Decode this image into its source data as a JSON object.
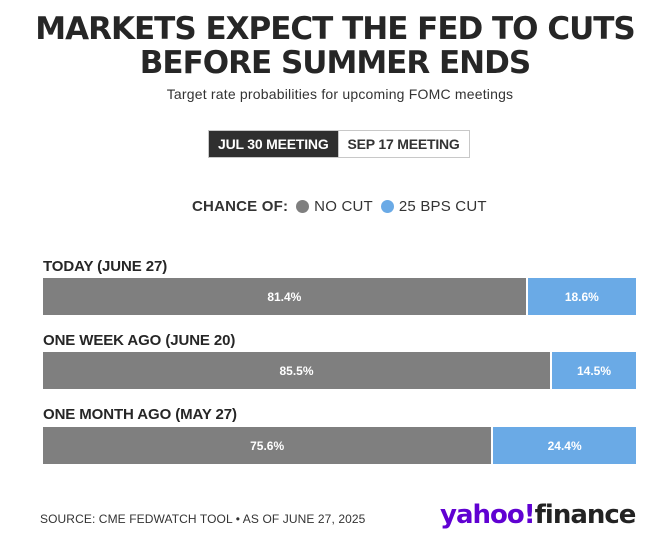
{
  "title_line1": "MARKETS EXPECT THE FED TO CUTS",
  "title_line2": "BEFORE SUMMER ENDS",
  "subtitle": "Target rate probabilities for upcoming FOMC meetings",
  "tabs": [
    {
      "label": "JUL 30 MEETING",
      "active": true
    },
    {
      "label": "SEP 17 MEETING",
      "active": false
    }
  ],
  "legend": {
    "label": "CHANCE OF:",
    "items": [
      {
        "name": "NO CUT",
        "color": "#7f7f7f"
      },
      {
        "name": "25 BPS CUT",
        "color": "#6aaae6"
      }
    ]
  },
  "chart_data": {
    "type": "bar",
    "orientation": "horizontal",
    "stacked": true,
    "categories": [
      "TODAY (JUNE 27)",
      "ONE WEEK AGO (JUNE 20)",
      "ONE MONTH AGO (MAY 27)"
    ],
    "series": [
      {
        "name": "NO CUT",
        "color": "#7f7f7f",
        "values": [
          81.4,
          85.5,
          75.6
        ],
        "labels": [
          "81.4%",
          "85.5%",
          "75.6%"
        ]
      },
      {
        "name": "25 BPS CUT",
        "color": "#6aaae6",
        "values": [
          18.6,
          14.5,
          24.4
        ],
        "labels": [
          "18.6%",
          "14.5%",
          "24.4%"
        ]
      }
    ],
    "xlim": [
      0,
      100
    ]
  },
  "footer": {
    "source": "SOURCE: CME FEDWATCH TOOL • AS OF JUNE 27, 2025",
    "logo_part1": "yahoo!",
    "logo_part2": "finance"
  }
}
